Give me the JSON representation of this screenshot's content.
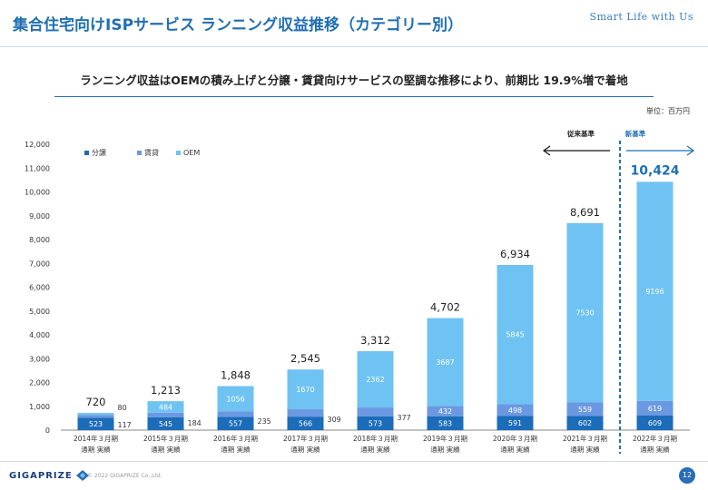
{
  "header": {
    "title": "集合住宅向けISPサービス ランニング収益推移（カテゴリー別）",
    "tagline": "Smart Life with Us"
  },
  "subtitle": "ランニング収益はOEMの積み上げと分譲・賃貸向けサービスの堅調な推移により、前期比 19.9%増で着地",
  "unit": "単位：百万円",
  "annotations": {
    "old_basis": "従来基準",
    "new_basis": "新基準"
  },
  "footer": {
    "logo": "GIGAPRIZE",
    "copyright": "© 2022 GIGAPRIZE Co.,Ltd.",
    "page": "12"
  },
  "colors": {
    "bunjo": "#1b6cb9",
    "chintai": "#6b98e2",
    "oem": "#6ec3f2",
    "accent": "#1f6fb5"
  },
  "chart_data": {
    "type": "bar",
    "stacked": true,
    "categories": [
      [
        "2014年３月期",
        "通期 実績"
      ],
      [
        "2015年３月期",
        "通期 実績"
      ],
      [
        "2016年３月期",
        "通期 実績"
      ],
      [
        "2017年３月期",
        "通期 実績"
      ],
      [
        "2018年３月期",
        "通期 実績"
      ],
      [
        "2019年３月期",
        "通期 実績"
      ],
      [
        "2020年３月期",
        "通期 実績"
      ],
      [
        "2021年３月期",
        "通期 実績"
      ],
      [
        "2022年３月期",
        "通期 実績"
      ]
    ],
    "series": [
      {
        "name": "分譲",
        "values": [
          523,
          545,
          557,
          566,
          573,
          583,
          591,
          602,
          609
        ]
      },
      {
        "name": "賃貸",
        "values": [
          117,
          184,
          235,
          309,
          377,
          432,
          498,
          559,
          619
        ]
      },
      {
        "name": "OEM",
        "values": [
          80,
          484,
          1056,
          1670,
          2362,
          3687,
          5845,
          7530,
          9196
        ]
      }
    ],
    "totals": [
      "720",
      "1,213",
      "1,848",
      "2,545",
      "3,312",
      "4,702",
      "6,934",
      "8,691",
      "10,424"
    ],
    "ylim": [
      0,
      12000
    ],
    "yticks": [
      "0",
      "1,000",
      "2,000",
      "3,000",
      "4,000",
      "5,000",
      "6,000",
      "7,000",
      "8,000",
      "9,000",
      "10,000",
      "11,000",
      "12,000"
    ],
    "legend_position": "top-left",
    "grid": false
  }
}
